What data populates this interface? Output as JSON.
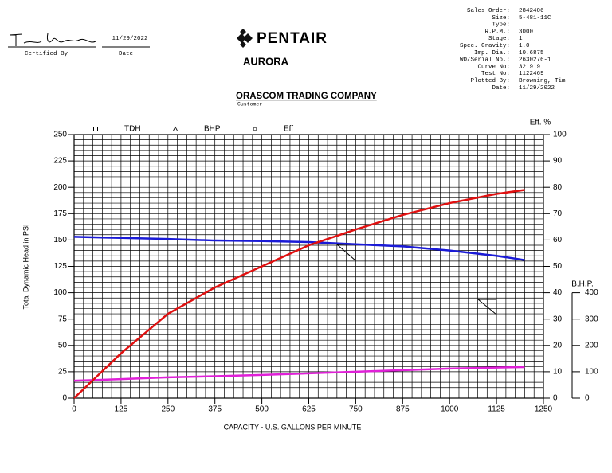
{
  "header": {
    "certified_date": "11/29/2022",
    "certified_by_label": "Certified By",
    "date_label": "Date",
    "brand": "PENTAIR",
    "sub_brand": "AURORA",
    "info": [
      {
        "label": "Sales Order:",
        "value": "2842406"
      },
      {
        "label": "Size:",
        "value": "5-481-11C"
      },
      {
        "label": "Type:"
      },
      {
        "label": "R.P.M.:",
        "value": "3000"
      },
      {
        "label": "Stage:",
        "value": "1"
      },
      {
        "label": "Spec. Gravity:",
        "value": "1.0"
      },
      {
        "label": "Imp. Dia.:",
        "value": "10.6875"
      },
      {
        "label": "WO/Serial No.:",
        "value": "2630276-1"
      },
      {
        "label": "Curve No:",
        "value": "321919"
      },
      {
        "label": "Test No:",
        "value": "1122469"
      },
      {
        "label": "Plotted By:",
        "value": "Browning, Tim"
      },
      {
        "label": "Date:",
        "value": "11/29/2022"
      }
    ],
    "customer": "ORASCOM TRADING COMPANY",
    "customer_label": "Customer"
  },
  "chart_data": {
    "type": "line",
    "x_label": "CAPACITY - U.S. GALLONS PER MINUTE",
    "y_label": "Total Dynamic Head in PSI",
    "y2_label": "Eff. %",
    "y3_label": "B.H.P.",
    "x": [
      0,
      125,
      250,
      375,
      500,
      625,
      750,
      875,
      1000,
      1125,
      1200
    ],
    "series": [
      {
        "name": "TDH",
        "color": "#1a1ad6",
        "axis": "y",
        "marker": "square",
        "values": [
          153,
          152,
          151,
          149.5,
          149,
          148,
          146,
          144,
          140,
          135,
          131
        ]
      },
      {
        "name": "BHP",
        "color": "#e020d8",
        "axis": "y3",
        "marker": "triangle",
        "values": [
          66,
          72,
          79,
          83,
          88,
          94,
          100,
          106,
          112,
          116,
          118
        ]
      },
      {
        "name": "Eff",
        "color": "#e01010",
        "axis": "y2",
        "marker": "diamond",
        "values": [
          0,
          17,
          32,
          42,
          50,
          58,
          64,
          69.5,
          74,
          77.5,
          79
        ]
      }
    ],
    "xlim": [
      0,
      1250
    ],
    "xticks": [
      0,
      125,
      250,
      375,
      500,
      625,
      750,
      875,
      1000,
      1125,
      1250
    ],
    "ylim": [
      0,
      250
    ],
    "yticks": [
      0,
      25,
      50,
      75,
      100,
      125,
      150,
      175,
      200,
      225,
      250
    ],
    "y2lim": [
      0,
      100
    ],
    "y2ticks": [
      0,
      10,
      20,
      30,
      40,
      50,
      60,
      70,
      80,
      90,
      100
    ],
    "y3lim": [
      0,
      400
    ],
    "y3ticks": [
      0,
      100,
      200,
      300,
      400
    ],
    "grid": true,
    "minor_grid": {
      "x": 25,
      "y": 5
    }
  }
}
